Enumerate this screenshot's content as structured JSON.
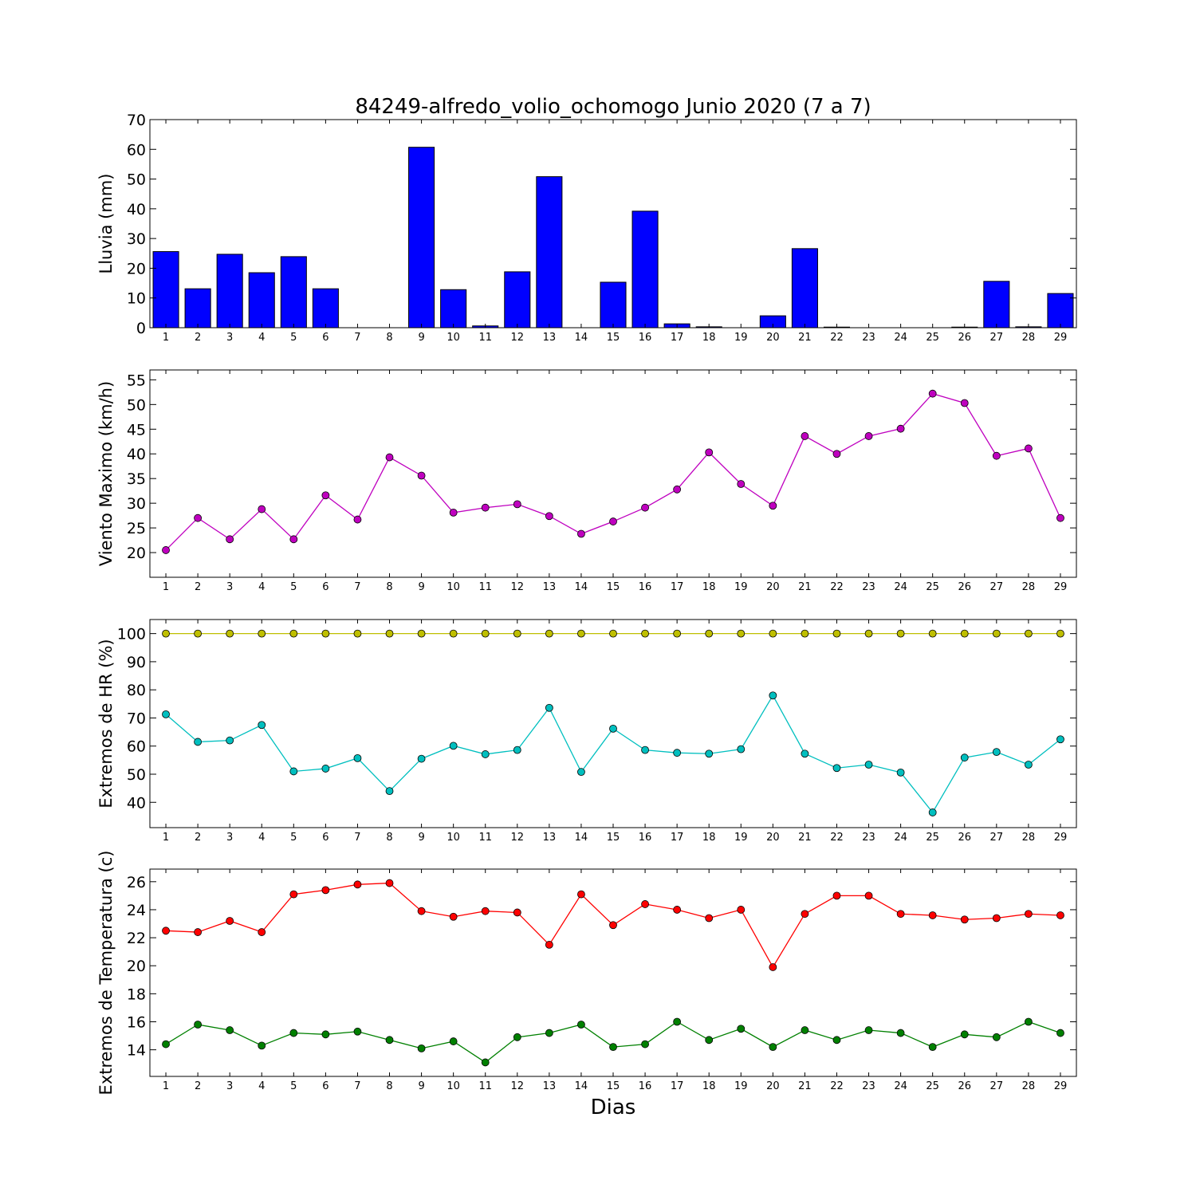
{
  "title": "84249-alfredo_volio_ochomogo Junio 2020  (7 a 7)",
  "xlabel": "Dias",
  "chart_data": [
    {
      "type": "bar",
      "id": "lluvia",
      "ylabel": "Lluvia (mm)",
      "ylim": [
        0,
        70
      ],
      "yticks": [
        0,
        10,
        20,
        30,
        40,
        50,
        60,
        70
      ],
      "x": [
        1,
        2,
        3,
        4,
        5,
        6,
        7,
        8,
        9,
        10,
        11,
        12,
        13,
        14,
        15,
        16,
        17,
        18,
        19,
        20,
        21,
        22,
        23,
        24,
        25,
        26,
        27,
        28,
        29
      ],
      "series": [
        {
          "values": [
            25.6,
            13.1,
            24.7,
            18.5,
            23.9,
            13.1,
            0,
            0,
            60.7,
            12.8,
            0.6,
            18.8,
            50.8,
            0,
            15.3,
            39.2,
            1.3,
            0.3,
            0,
            4.0,
            26.6,
            0.2,
            0,
            0,
            0,
            0.2,
            15.6,
            0.3,
            11.5
          ],
          "color": "#0000ff"
        }
      ]
    },
    {
      "type": "line",
      "id": "viento",
      "ylabel": "Viento Maximo (km/h)",
      "ylim": [
        15,
        57
      ],
      "yticks": [
        20,
        25,
        30,
        35,
        40,
        45,
        50,
        55
      ],
      "x": [
        1,
        2,
        3,
        4,
        5,
        6,
        7,
        8,
        9,
        10,
        11,
        12,
        13,
        14,
        15,
        16,
        17,
        18,
        19,
        20,
        21,
        22,
        23,
        24,
        25,
        26,
        27,
        28,
        29
      ],
      "series": [
        {
          "values": [
            20.5,
            27.0,
            22.7,
            28.8,
            22.7,
            31.6,
            26.7,
            39.3,
            35.6,
            28.1,
            29.1,
            29.8,
            27.4,
            23.8,
            26.3,
            29.1,
            32.8,
            40.3,
            33.9,
            29.5,
            43.6,
            40.0,
            43.6,
            45.1,
            52.2,
            50.3,
            39.6,
            41.1,
            27.0
          ],
          "color": "#bf00bf"
        }
      ]
    },
    {
      "type": "line",
      "id": "hr",
      "ylabel": "Extremos de HR (%)",
      "ylim": [
        31,
        105
      ],
      "yticks": [
        40,
        50,
        60,
        70,
        80,
        90,
        100
      ],
      "x": [
        1,
        2,
        3,
        4,
        5,
        6,
        7,
        8,
        9,
        10,
        11,
        12,
        13,
        14,
        15,
        16,
        17,
        18,
        19,
        20,
        21,
        22,
        23,
        24,
        25,
        26,
        27,
        28,
        29
      ],
      "series": [
        {
          "values": [
            100,
            100,
            100,
            100,
            100,
            100,
            100,
            100,
            100,
            100,
            100,
            100,
            100,
            100,
            100,
            100,
            100,
            100,
            100,
            100,
            100,
            100,
            100,
            100,
            100,
            100,
            100,
            100,
            100
          ],
          "color": "#bfbf00"
        },
        {
          "values": [
            71.3,
            61.5,
            62.0,
            67.5,
            51.0,
            52.0,
            55.7,
            44.0,
            55.5,
            60.1,
            57.1,
            58.6,
            73.6,
            50.8,
            66.2,
            58.6,
            57.6,
            57.3,
            58.9,
            78.0,
            57.3,
            52.2,
            53.4,
            50.6,
            36.4,
            55.9,
            57.9,
            53.4,
            62.4
          ],
          "color": "#00bfbf"
        }
      ]
    },
    {
      "type": "line",
      "id": "temp",
      "ylabel": "Extremos de Temperatura (c)",
      "ylim": [
        12.1,
        26.9
      ],
      "yticks": [
        14,
        16,
        18,
        20,
        22,
        24,
        26
      ],
      "x": [
        1,
        2,
        3,
        4,
        5,
        6,
        7,
        8,
        9,
        10,
        11,
        12,
        13,
        14,
        15,
        16,
        17,
        18,
        19,
        20,
        21,
        22,
        23,
        24,
        25,
        26,
        27,
        28,
        29
      ],
      "series": [
        {
          "values": [
            22.5,
            22.4,
            23.2,
            22.4,
            25.1,
            25.4,
            25.8,
            25.9,
            23.9,
            23.5,
            23.9,
            23.8,
            21.5,
            25.1,
            22.9,
            24.4,
            24.0,
            23.4,
            24.0,
            19.9,
            23.7,
            25.0,
            25.0,
            23.7,
            23.6,
            23.3,
            23.4,
            23.7,
            23.6
          ],
          "color": "#ff0000"
        },
        {
          "values": [
            14.4,
            15.8,
            15.4,
            14.3,
            15.2,
            15.1,
            15.3,
            14.7,
            14.1,
            14.6,
            13.1,
            14.9,
            15.2,
            15.8,
            14.2,
            14.4,
            16.0,
            14.7,
            15.5,
            14.2,
            15.4,
            14.7,
            15.4,
            15.2,
            14.2,
            15.1,
            14.9,
            16.0,
            15.2
          ],
          "color": "#008000"
        }
      ]
    }
  ]
}
